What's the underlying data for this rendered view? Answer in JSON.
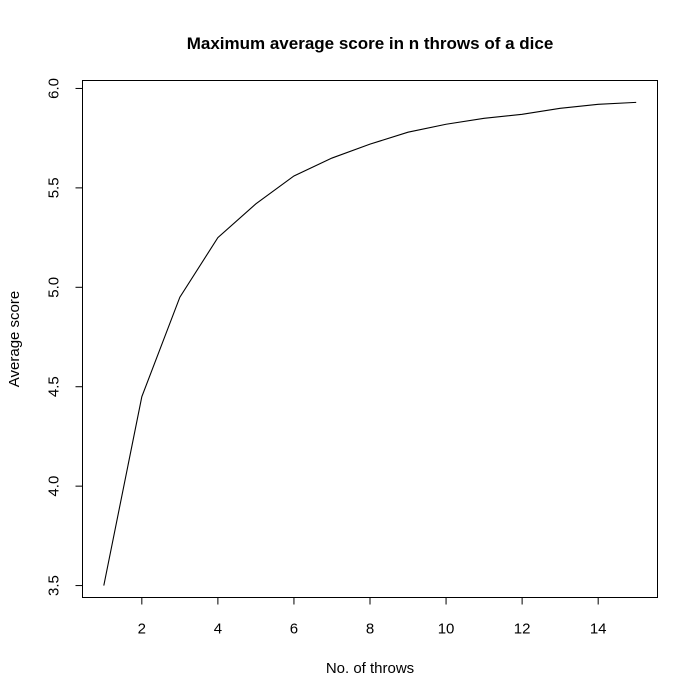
{
  "chart_data": {
    "type": "line",
    "title": "Maximum average score in n throws of a dice",
    "xlabel": "No. of throws",
    "ylabel": "Average score",
    "x": [
      1,
      2,
      3,
      4,
      5,
      6,
      7,
      8,
      9,
      10,
      11,
      12,
      13,
      14,
      15
    ],
    "series": [
      {
        "values": [
          3.5,
          4.45,
          4.95,
          5.25,
          5.42,
          5.56,
          5.65,
          5.72,
          5.78,
          5.82,
          5.85,
          5.87,
          5.9,
          5.92,
          5.93
        ]
      }
    ],
    "xlim": [
      0.44,
      15.56
    ],
    "ylim": [
      3.44,
      6.04
    ],
    "x_ticks": [
      2,
      4,
      6,
      8,
      10,
      12,
      14
    ],
    "y_ticks": [
      3.5,
      4.0,
      4.5,
      5.0,
      5.5,
      6.0
    ],
    "x_tick_labels": [
      "2",
      "4",
      "6",
      "8",
      "10",
      "12",
      "14"
    ],
    "y_tick_labels": [
      "3.5",
      "4.0",
      "4.5",
      "5.0",
      "5.5",
      "6.0"
    ],
    "grid": false,
    "legend": "none",
    "line_color": "#000000"
  }
}
